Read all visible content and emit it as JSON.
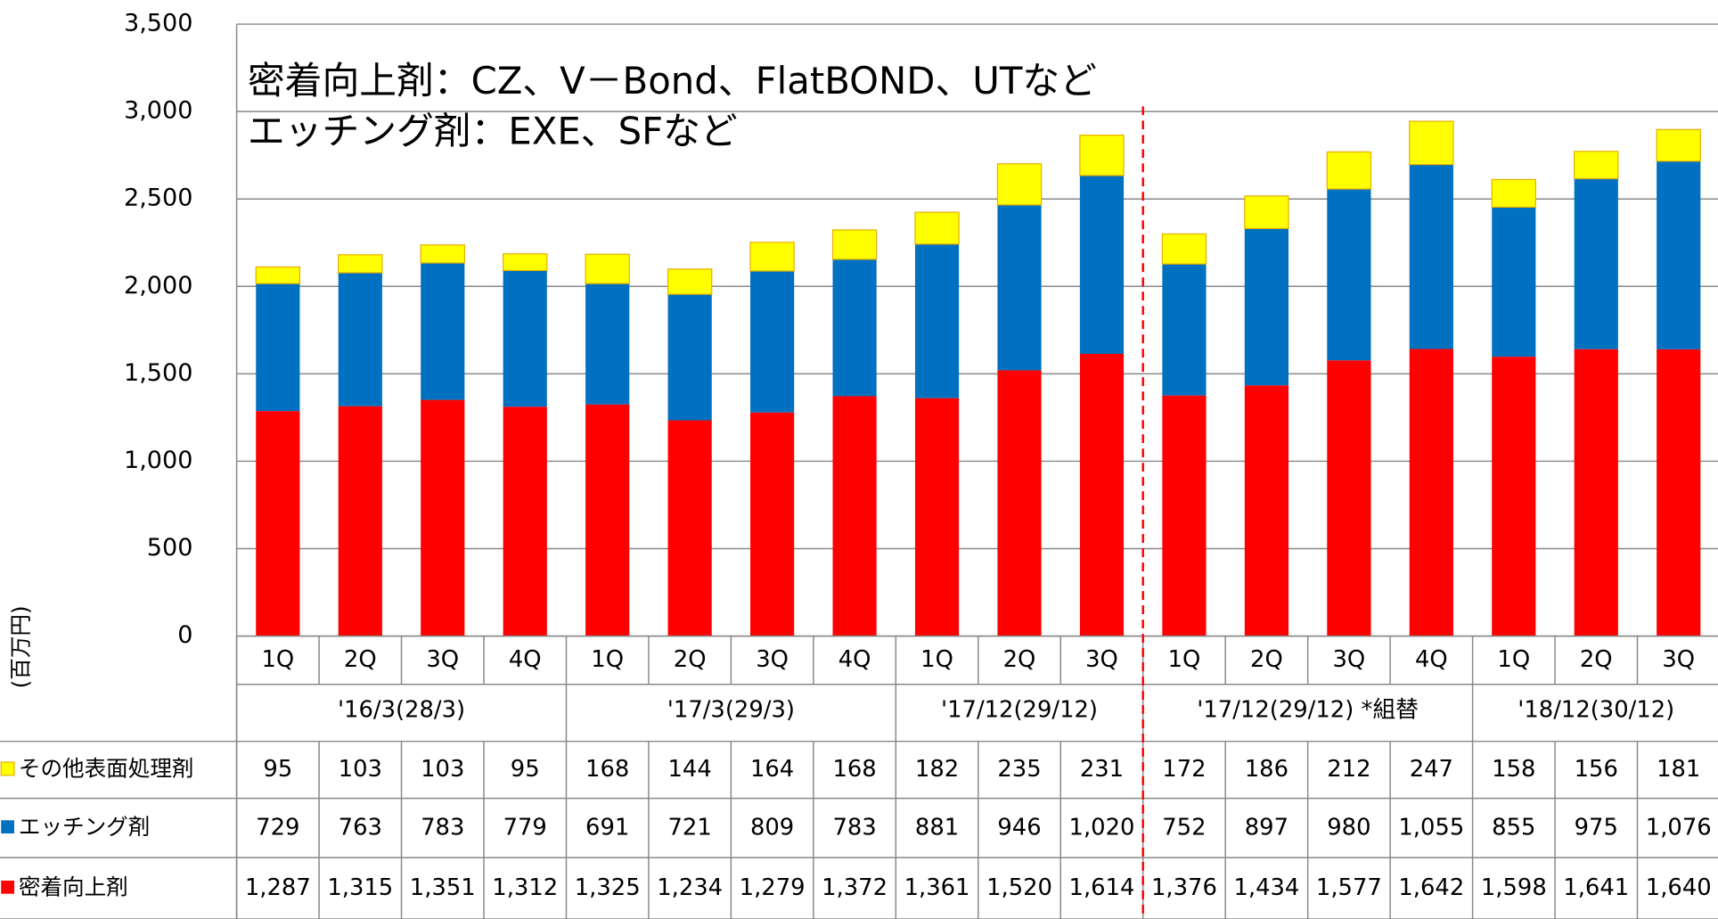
{
  "chart_data": {
    "type": "stacked_bar",
    "y_label": "(百万円)",
    "annotations": [
      "密着向上剤：CZ、V－Bond、FlatBOND、UTなど",
      "エッチング剤：EXE、SFなど"
    ],
    "groups": [
      {
        "label": "'16/3(28/3)",
        "categories": [
          "1Q",
          "2Q",
          "3Q",
          "4Q"
        ]
      },
      {
        "label": "'17/3(29/3)",
        "categories": [
          "1Q",
          "2Q",
          "3Q",
          "4Q"
        ]
      },
      {
        "label": "'17/12(29/12)",
        "categories": [
          "1Q",
          "2Q",
          "3Q"
        ]
      },
      {
        "label": "'17/12(29/12) *組替",
        "categories": [
          "1Q",
          "2Q",
          "3Q",
          "4Q"
        ]
      },
      {
        "label": "'18/12(30/12)",
        "categories": [
          "1Q",
          "2Q",
          "3Q"
        ]
      }
    ],
    "series": [
      {
        "name": "密着向上剤",
        "color": "#ff0000",
        "values": [
          1287,
          1315,
          1351,
          1312,
          1325,
          1234,
          1279,
          1372,
          1361,
          1520,
          1614,
          1376,
          1434,
          1577,
          1642,
          1598,
          1641,
          1640
        ],
        "value_labels": [
          "1,287",
          "1,315",
          "1,351",
          "1,312",
          "1,325",
          "1,234",
          "1,279",
          "1,372",
          "1,361",
          "1,520",
          "1,614",
          "1,376",
          "1,434",
          "1,577",
          "1,642",
          "1,598",
          "1,641",
          "1,640"
        ]
      },
      {
        "name": "エッチング剤",
        "color": "#0070c0",
        "values": [
          729,
          763,
          783,
          779,
          691,
          721,
          809,
          783,
          881,
          946,
          1020,
          752,
          897,
          980,
          1055,
          855,
          975,
          1076
        ],
        "value_labels": [
          "729",
          "763",
          "783",
          "779",
          "691",
          "721",
          "809",
          "783",
          "881",
          "946",
          "1,020",
          "752",
          "897",
          "980",
          "1,055",
          "855",
          "975",
          "1,076"
        ]
      },
      {
        "name": "その他表面処理剤",
        "color": "#ffff00",
        "values": [
          95,
          103,
          103,
          95,
          168,
          144,
          164,
          168,
          182,
          235,
          231,
          172,
          186,
          212,
          247,
          158,
          156,
          181
        ]
      }
    ],
    "ylim": [
      0,
      3500
    ],
    "yticks": [
      0,
      500,
      {
        "value": 1000,
        "label": "1,000"
      },
      {
        "value": 1500,
        "label": "1,500"
      },
      {
        "value": 2000,
        "label": "2,000"
      },
      {
        "value": 2500,
        "label": "2,500"
      },
      {
        "value": 3000,
        "label": "3,000"
      },
      {
        "value": 3500,
        "label": "3,500"
      }
    ],
    "grid": true
  }
}
